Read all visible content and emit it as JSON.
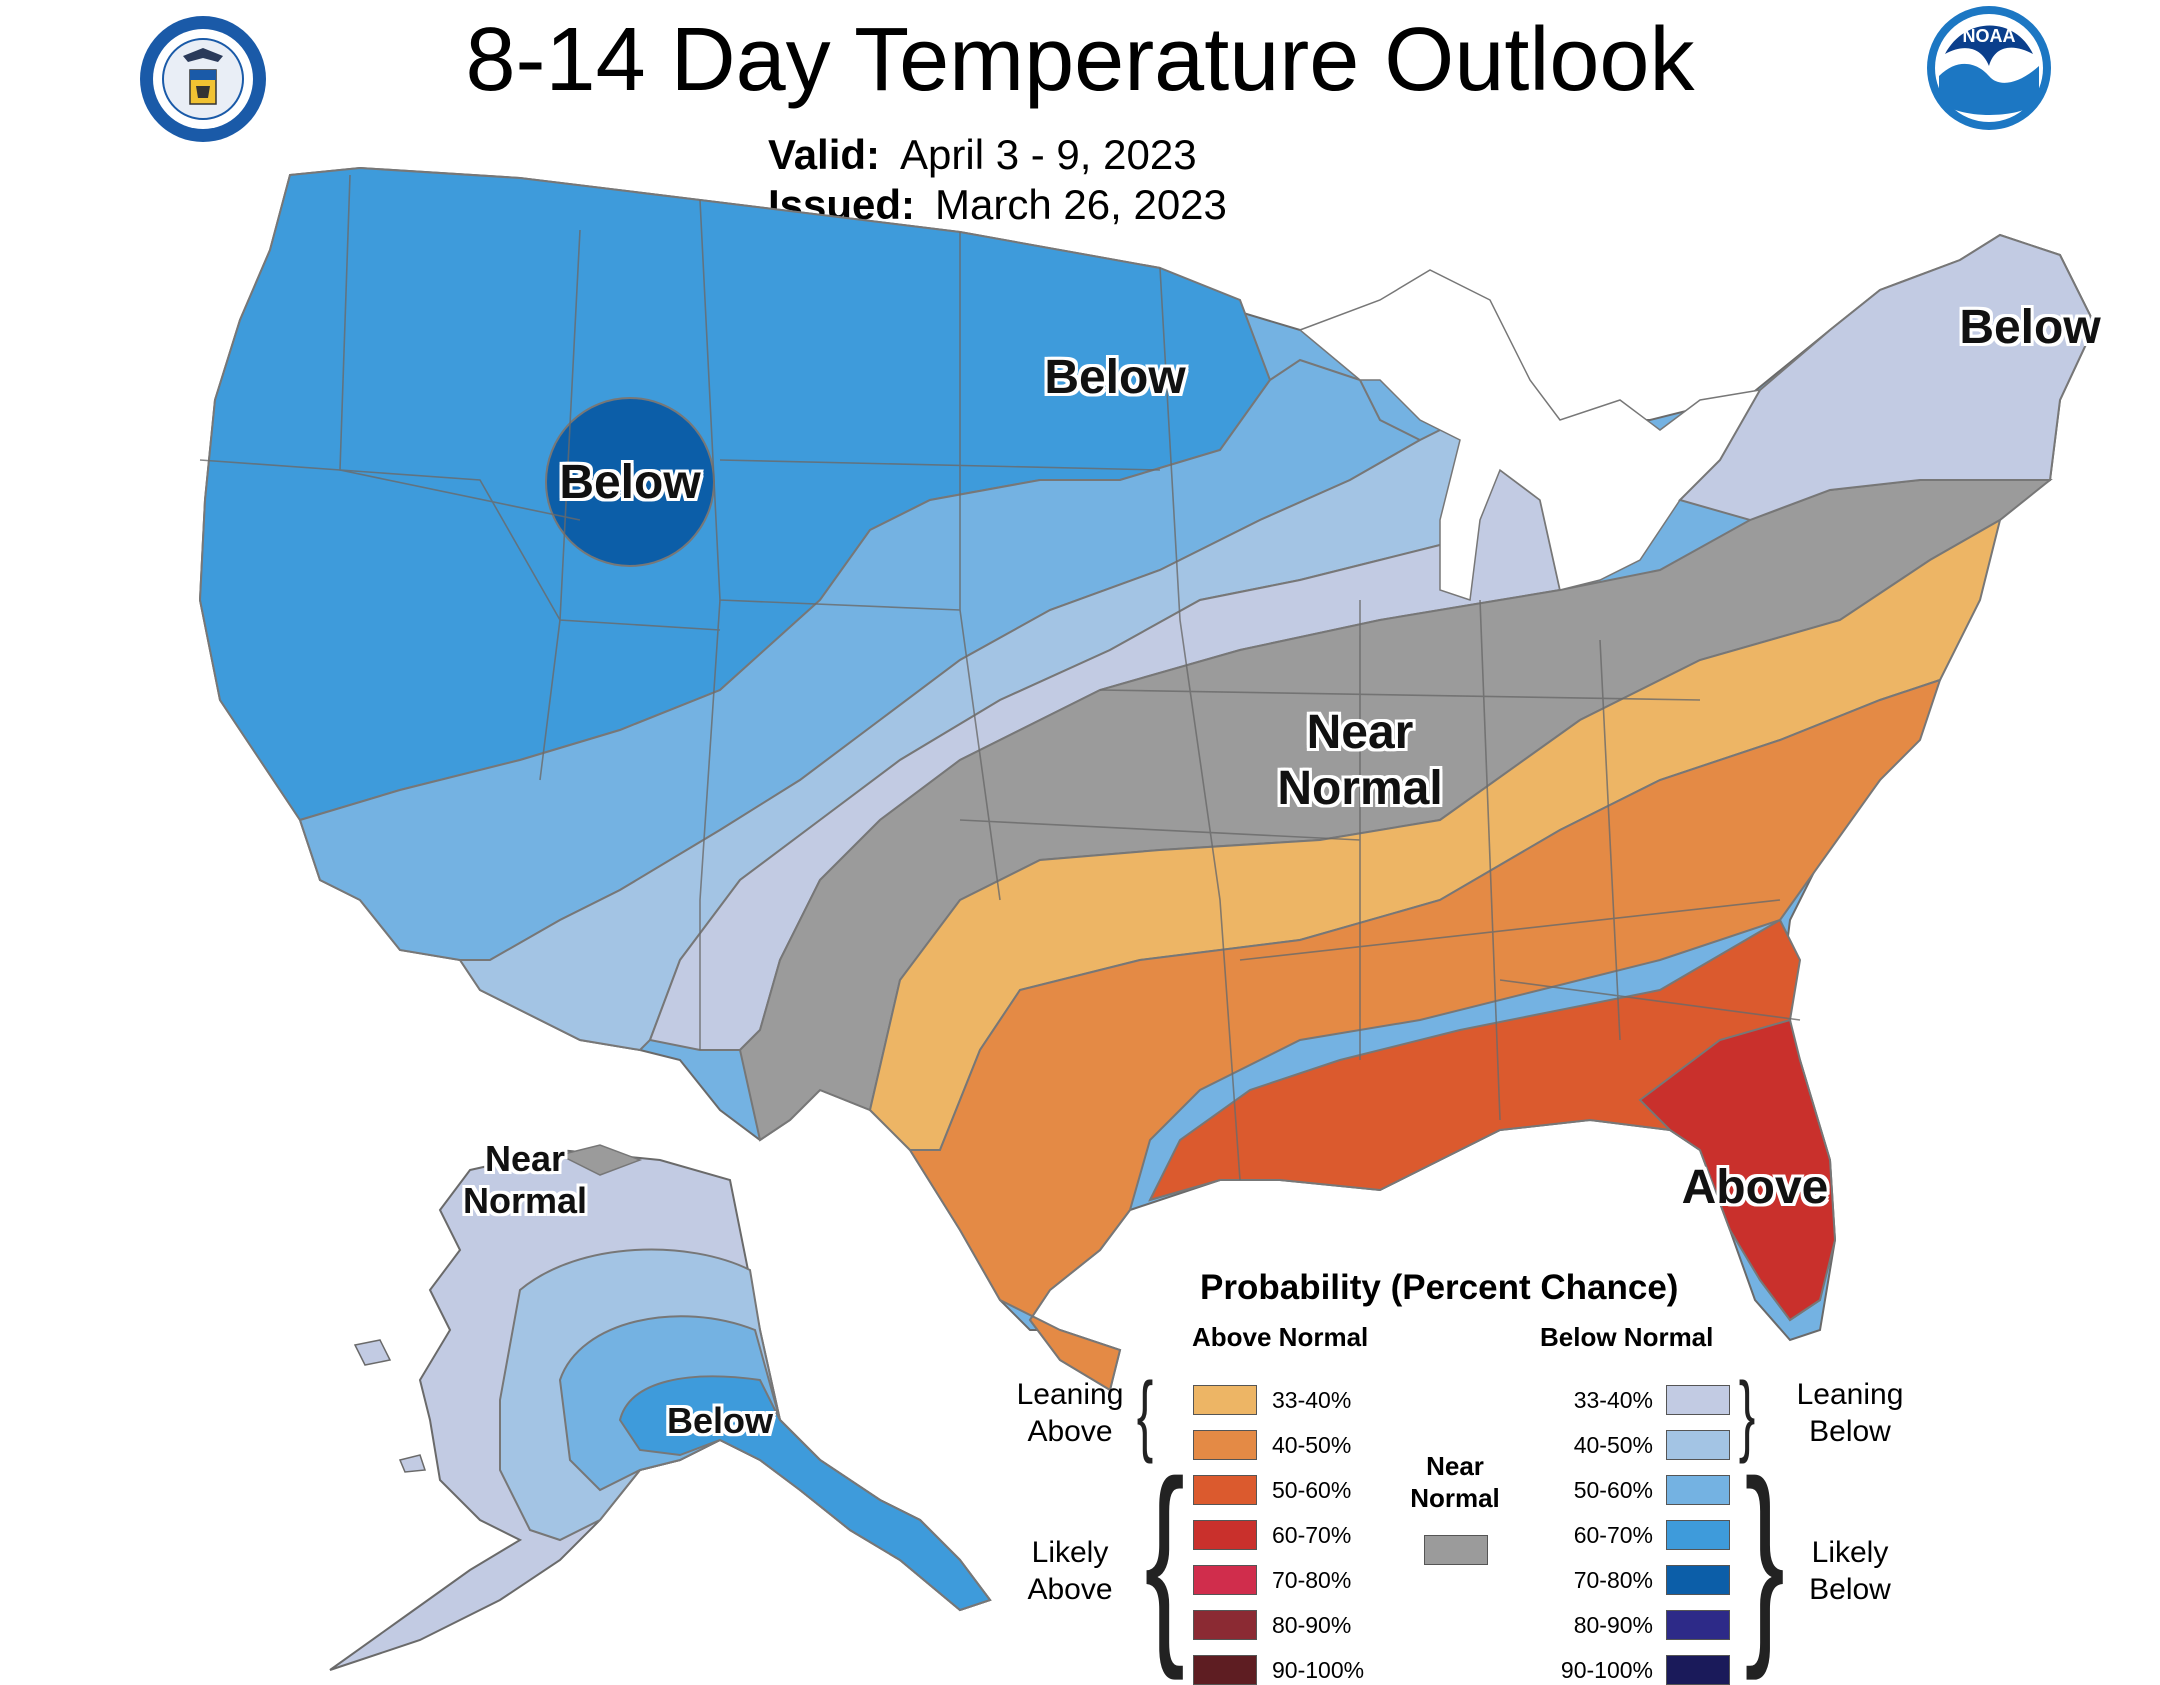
{
  "title": "8-14 Day Temperature Outlook",
  "valid": {
    "label": "Valid:",
    "value": "April 3 - 9, 2023"
  },
  "issued": {
    "label": "Issued:",
    "value": "March 26, 2023"
  },
  "logos": {
    "left": "department-of-commerce-seal",
    "right": "noaa-logo",
    "right_text": "NOAA"
  },
  "map_labels": {
    "below_northwest": "Below",
    "below_north_central": "Below",
    "below_northeast": "Below",
    "near_normal_center": "Near Normal",
    "above_southeast": "Above",
    "near_normal_alaska": "Near Normal",
    "below_alaska": "Below"
  },
  "legend": {
    "title": "Probability (Percent Chance)",
    "above_heading": "Above Normal",
    "below_heading": "Below Normal",
    "leaning_above": "Leaning Above",
    "likely_above": "Likely Above",
    "leaning_below": "Leaning Below",
    "likely_below": "Likely Below",
    "near_normal": "Near Normal",
    "near_normal_color": "#9b9b9b",
    "above": [
      {
        "range": "33-40%",
        "color": "#edb565"
      },
      {
        "range": "40-50%",
        "color": "#e48a45"
      },
      {
        "range": "50-60%",
        "color": "#db5a2e"
      },
      {
        "range": "60-70%",
        "color": "#c9302c"
      },
      {
        "range": "70-80%",
        "color": "#d02d4c"
      },
      {
        "range": "80-90%",
        "color": "#8b2a33"
      },
      {
        "range": "90-100%",
        "color": "#5e1d22"
      }
    ],
    "below": [
      {
        "range": "33-40%",
        "color": "#c2cbe3"
      },
      {
        "range": "40-50%",
        "color": "#a3c4e4"
      },
      {
        "range": "50-60%",
        "color": "#74b2e2"
      },
      {
        "range": "60-70%",
        "color": "#3e9bdb"
      },
      {
        "range": "70-80%",
        "color": "#0c5ea8"
      },
      {
        "range": "80-90%",
        "color": "#2d2a88"
      },
      {
        "range": "90-100%",
        "color": "#1a1a5a"
      }
    ]
  }
}
